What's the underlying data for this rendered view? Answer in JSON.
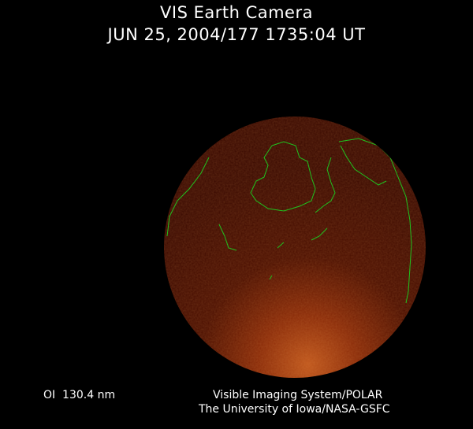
{
  "header": {
    "title": "VIS Earth Camera",
    "timestamp": "JUN 25, 2004/177 1735:04 UT"
  },
  "footer": {
    "wavelength": "OI  130.4 nm",
    "credit_line1": "Visible Imaging System/POLAR",
    "credit_line2": "The University of Iowa/NASA-GSFC"
  },
  "colors": {
    "background": "#000000",
    "earth_disc": "#3a0a00",
    "aurora_glow": "#c0501a",
    "coastlines": "#1fc41f"
  }
}
